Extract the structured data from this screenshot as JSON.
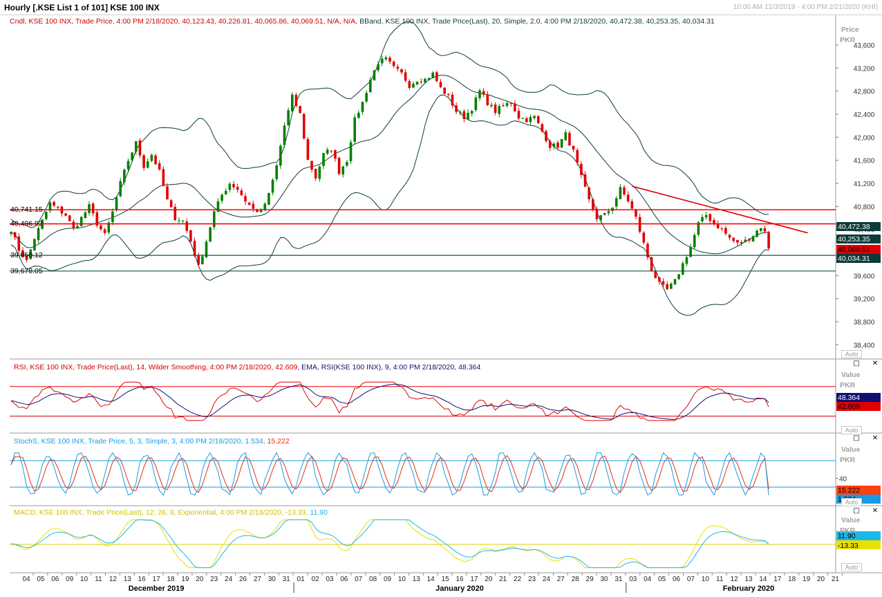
{
  "window": {
    "title": "Hourly [.KSE List 1 of 101] KSE 100 INX",
    "range": "10:00 AM 12/3/2019 - 4:00 PM 2/21/2020 (KHI)"
  },
  "colors": {
    "up": "#008000",
    "down": "#e00000",
    "bband": "#0b3b3b",
    "hline_red": "#ff0000",
    "hline_green": "#0b5a3a",
    "trendline": "#e00000",
    "rsi": "#e00000",
    "rsi_ema": "#101070",
    "stoch_k": "#1a9ae0",
    "stoch_d": "#e03010",
    "macd": "#1ab8e8",
    "macd_signal": "#e8e000"
  },
  "controls": {
    "maximize_icon": "square-icon",
    "close_icon": "close-icon",
    "auto_label": "Auto"
  },
  "chart_data": [
    {
      "id": "price",
      "type": "candlestick",
      "legend_cndl": "Cndl, KSE 100 INX, Trade Price,  4:00 PM 2/18/2020, 40,123.43, 40,226.81, 40,065.86, 40,069.51, N/A, N/A,",
      "legend_bband": " BBand, KSE 100 INX, Trade Price(Last),  20, Simple, 2.0,  4:00 PM 2/18/2020, 40,472.38, 40,253.35, 40,034.31",
      "axis_title": "Price",
      "axis_unit": "PKR",
      "ylim": [
        38200,
        43900
      ],
      "yticks": [
        43600,
        43200,
        42800,
        42400,
        42000,
        41600,
        41200,
        40800,
        40400,
        40000,
        39600,
        39200,
        38800,
        38400
      ],
      "ytick_labels": [
        "43,600",
        "43,200",
        "42,800",
        "42,400",
        "42,000",
        "41,600",
        "41,200",
        "40,800",
        "40,400",
        "40,000",
        "39,600",
        "39,200",
        "38,800",
        "38,400"
      ],
      "anchors": [
        [
          0,
          40400
        ],
        [
          2,
          40050
        ],
        [
          4,
          39850
        ],
        [
          6,
          40250
        ],
        [
          8,
          40550
        ],
        [
          10,
          40850
        ],
        [
          12,
          40750
        ],
        [
          14,
          40650
        ],
        [
          16,
          40400
        ],
        [
          18,
          40600
        ],
        [
          20,
          40800
        ],
        [
          22,
          40500
        ],
        [
          24,
          40300
        ],
        [
          26,
          40700
        ],
        [
          28,
          41200
        ],
        [
          30,
          41600
        ],
        [
          32,
          41900
        ],
        [
          34,
          41500
        ],
        [
          36,
          41700
        ],
        [
          38,
          41400
        ],
        [
          40,
          40900
        ],
        [
          42,
          40600
        ],
        [
          44,
          40550
        ],
        [
          46,
          40200
        ],
        [
          48,
          39750
        ],
        [
          50,
          40200
        ],
        [
          52,
          40700
        ],
        [
          54,
          41000
        ],
        [
          56,
          41200
        ],
        [
          58,
          41100
        ],
        [
          60,
          40900
        ],
        [
          62,
          40750
        ],
        [
          64,
          40700
        ],
        [
          66,
          41000
        ],
        [
          68,
          41500
        ],
        [
          70,
          42200
        ],
        [
          72,
          42700
        ],
        [
          74,
          42400
        ],
        [
          76,
          41600
        ],
        [
          78,
          41300
        ],
        [
          80,
          41700
        ],
        [
          82,
          41800
        ],
        [
          84,
          41400
        ],
        [
          86,
          41600
        ],
        [
          88,
          42300
        ],
        [
          90,
          42600
        ],
        [
          92,
          43000
        ],
        [
          94,
          43300
        ],
        [
          96,
          43350
        ],
        [
          98,
          43200
        ],
        [
          100,
          43100
        ],
        [
          102,
          42900
        ],
        [
          104,
          43000
        ],
        [
          106,
          43000
        ],
        [
          108,
          43100
        ],
        [
          110,
          42850
        ],
        [
          112,
          42700
        ],
        [
          114,
          42450
        ],
        [
          116,
          42350
        ],
        [
          118,
          42500
        ],
        [
          120,
          42800
        ],
        [
          122,
          42600
        ],
        [
          124,
          42450
        ],
        [
          126,
          42550
        ],
        [
          128,
          42600
        ],
        [
          130,
          42350
        ],
        [
          132,
          42300
        ],
        [
          134,
          42350
        ],
        [
          136,
          42100
        ],
        [
          138,
          41850
        ],
        [
          140,
          41850
        ],
        [
          142,
          42050
        ],
        [
          144,
          41750
        ],
        [
          146,
          41300
        ],
        [
          148,
          40900
        ],
        [
          150,
          40600
        ],
        [
          152,
          40650
        ],
        [
          154,
          40800
        ],
        [
          156,
          41100
        ],
        [
          158,
          40900
        ],
        [
          160,
          40600
        ],
        [
          162,
          40150
        ],
        [
          164,
          39700
        ],
        [
          166,
          39450
        ],
        [
          168,
          39350
        ],
        [
          170,
          39500
        ],
        [
          172,
          39800
        ],
        [
          174,
          40100
        ],
        [
          176,
          40500
        ],
        [
          178,
          40650
        ],
        [
          180,
          40500
        ],
        [
          182,
          40400
        ],
        [
          184,
          40250
        ],
        [
          186,
          40150
        ],
        [
          188,
          40200
        ],
        [
          190,
          40300
        ],
        [
          192,
          40450
        ],
        [
          193,
          40350
        ],
        [
          194,
          40069.51
        ]
      ],
      "last_values": [
        "40,472.38",
        "40,253.35",
        "40,069.51",
        "40,034.31"
      ],
      "hlines": [
        {
          "value": 40741.15,
          "label": "40,741.15",
          "kind": "red"
        },
        {
          "value": 40496.92,
          "label": "40,496.92",
          "kind": "red"
        },
        {
          "value": 39950.12,
          "label": "39,950.12",
          "kind": "green"
        },
        {
          "value": 39678.05,
          "label": "39,678.05",
          "kind": "green"
        }
      ],
      "trendline": [
        [
          159,
          41150
        ],
        [
          204,
          40340
        ]
      ]
    },
    {
      "id": "rsi",
      "type": "line",
      "legend_a": "RSI, KSE 100 INX, Trade Price(Last),  14, Wilder Smoothing,  4:00 PM 2/18/2020, 42.609,",
      "legend_b": " EMA, RSI(KSE 100 INX),  9,  4:00 PM 2/18/2020, 48.364",
      "axis_title": "Value",
      "axis_unit": "PKR",
      "ylim": [
        22,
        80
      ],
      "bands": [
        70,
        30
      ],
      "last_values": [
        "48.364",
        "42.609"
      ]
    },
    {
      "id": "stoch",
      "type": "line",
      "legend_a": "StochS, KSE 100 INX, Trade Price,  5, 3, Simple, 3,  4:00 PM 2/18/2020, 1.534,",
      "legend_b": " 15.222",
      "axis_title": "Value",
      "axis_unit": "PKR",
      "ylim": [
        -5,
        105
      ],
      "bands": [
        80,
        20
      ],
      "ytick_labels": [
        "40"
      ],
      "yticks": [
        40
      ],
      "last_values": [
        "15.222",
        "1.534"
      ]
    },
    {
      "id": "macd",
      "type": "line",
      "legend_a": "MACD, KSE 100 INX, Trade Price(Last),  12, 26, 9, Exponential,  4:00 PM 2/18/2020, -13.33,",
      "legend_b": " 11.90",
      "axis_title": "Value",
      "axis_unit": "PKR",
      "ylim": [
        -500,
        500
      ],
      "zero": 0,
      "last_values": [
        "11.90",
        "-13.33"
      ]
    }
  ],
  "xaxis": {
    "days": [
      "04",
      "05",
      "06",
      "09",
      "10",
      "11",
      "12",
      "13",
      "16",
      "17",
      "18",
      "19",
      "20",
      "23",
      "24",
      "26",
      "27",
      "30",
      "31",
      "01",
      "02",
      "03",
      "06",
      "07",
      "08",
      "09",
      "10",
      "13",
      "14",
      "15",
      "16",
      "17",
      "20",
      "21",
      "22",
      "23",
      "24",
      "27",
      "28",
      "29",
      "30",
      "31",
      "03",
      "04",
      "05",
      "06",
      "07",
      "10",
      "11",
      "12",
      "13",
      "14",
      "17",
      "18",
      "19",
      "20",
      "21"
    ],
    "months": [
      {
        "label": "December 2019",
        "at": 9
      },
      {
        "label": "January 2020",
        "at": 30
      },
      {
        "label": "February 2020",
        "at": 50
      }
    ],
    "month_separators": [
      19,
      42
    ]
  }
}
